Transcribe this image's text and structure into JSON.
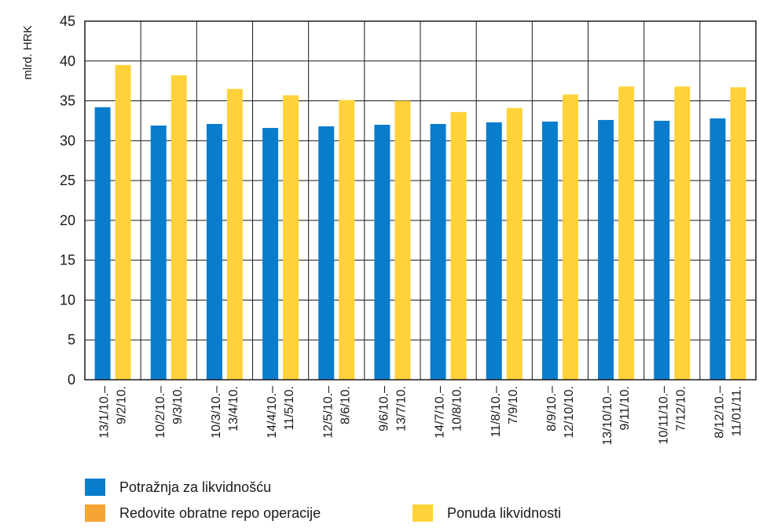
{
  "chart_data": {
    "type": "bar",
    "ylabel": "mlrd. HRK",
    "ylim": [
      0,
      45
    ],
    "yticks": [
      0,
      5,
      10,
      15,
      20,
      25,
      30,
      35,
      40,
      45
    ],
    "grid": true,
    "categories": [
      [
        "13/1/10.–",
        "9/2/10."
      ],
      [
        "10/2/10.–",
        "9/3/10."
      ],
      [
        "10/3/10.–",
        "13/4/10."
      ],
      [
        "14/4/10.–",
        "11/5/10."
      ],
      [
        "12/5/10.–",
        "8/6/10."
      ],
      [
        "9/6/10.–",
        "13/7/10."
      ],
      [
        "14/7/10.–",
        "10/8/10."
      ],
      [
        "11/8/10.–",
        "7/9/10."
      ],
      [
        "8/9/10.–",
        "12/10/10."
      ],
      [
        "13/10/10.–",
        "9/11/10."
      ],
      [
        "10/11/10.–",
        "7/12/10."
      ],
      [
        "8/12/10.–",
        "11/01/11."
      ]
    ],
    "series": [
      {
        "name": "Potražnja za likvidnošću",
        "color": "#0a7ccc",
        "values": [
          34.2,
          31.9,
          32.1,
          31.6,
          31.8,
          32.0,
          32.1,
          32.3,
          32.4,
          32.6,
          32.5,
          32.8
        ]
      },
      {
        "name": "Redovite obratne repo operacije",
        "color": "#f4a535",
        "values": [
          0,
          0,
          0,
          0,
          0,
          0,
          0,
          0,
          0,
          0,
          0,
          0
        ]
      },
      {
        "name": "Ponuda likvidnosti",
        "color": "#ffd23a",
        "values": [
          39.5,
          38.2,
          36.5,
          35.7,
          35.1,
          35.0,
          33.6,
          34.1,
          35.8,
          36.8,
          36.8,
          36.7
        ]
      }
    ],
    "legend": "bottom"
  }
}
